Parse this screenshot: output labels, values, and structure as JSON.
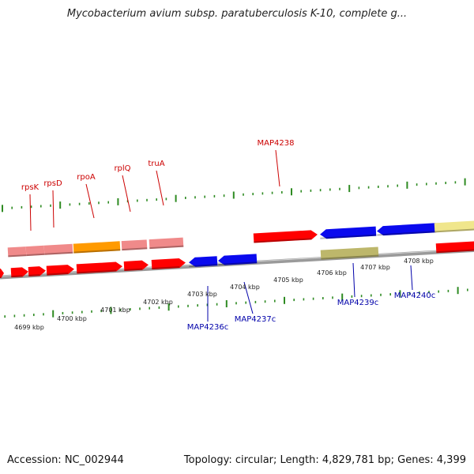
{
  "title": "Mycobacterium avium subsp. paratuberculosis K-10, complete g...",
  "footer": {
    "accession": "Accession: NC_002944",
    "summary": "Topology: circular; Length: 4,829,781 bp; Genes: 4,399"
  },
  "colors": {
    "background": "#ffffff",
    "backbone": "#8f8f8f",
    "tick": "#2e8b22",
    "forward_label": "#cc0000",
    "reverse_label": "#0000aa",
    "red": "#ff0000",
    "pink": "#f08a8a",
    "orange": "#ff9a00",
    "blue": "#0a0aee",
    "olive": "#bdb76b",
    "paleyellow": "#f0e68c"
  },
  "scale": {
    "unit": "kbp",
    "labels": [
      {
        "kbp": 4699,
        "text": "4699 kbp"
      },
      {
        "kbp": 4700,
        "text": "4700 kbp"
      },
      {
        "kbp": 4701,
        "text": "4701 kbp"
      },
      {
        "kbp": 4702,
        "text": "4702 kbp"
      },
      {
        "kbp": 4703,
        "text": "4703 kbp"
      },
      {
        "kbp": 4704,
        "text": "4704 kbp"
      },
      {
        "kbp": 4705,
        "text": "4705 kbp"
      },
      {
        "kbp": 4706,
        "text": "4706 kbp"
      },
      {
        "kbp": 4707,
        "text": "4707 kbp"
      },
      {
        "kbp": 4708,
        "text": "4708 kbp"
      }
    ]
  },
  "gene_labels": [
    {
      "name": "rpsK",
      "strand": "forward"
    },
    {
      "name": "rpsD",
      "strand": "forward"
    },
    {
      "name": "rpoA",
      "strand": "forward"
    },
    {
      "name": "rplQ",
      "strand": "forward"
    },
    {
      "name": "truA",
      "strand": "forward"
    },
    {
      "name": "MAP4238",
      "strand": "forward"
    },
    {
      "name": "MAP4236c",
      "strand": "reverse"
    },
    {
      "name": "MAP4237c",
      "strand": "reverse"
    },
    {
      "name": "MAP4239c",
      "strand": "reverse"
    },
    {
      "name": "MAP4240c",
      "strand": "reverse"
    }
  ]
}
